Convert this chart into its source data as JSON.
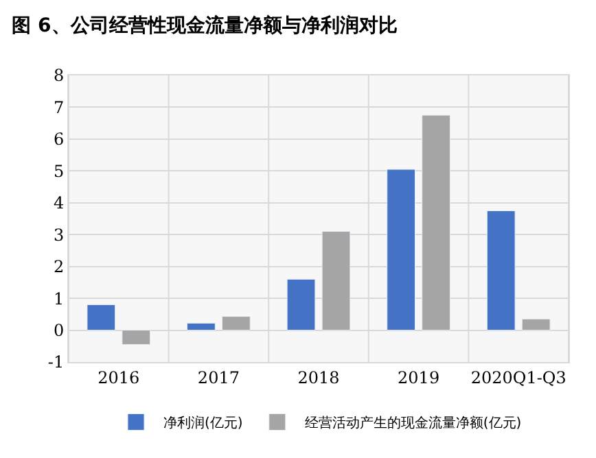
{
  "chart_data": {
    "type": "bar",
    "title": "图 6、公司经营性现金流量净额与净利润对比",
    "categories": [
      "2016",
      "2017",
      "2018",
      "2019",
      "2020Q1-Q3"
    ],
    "series": [
      {
        "name": "净利润(亿元)",
        "color": "#4472c4",
        "values": [
          0.8,
          0.22,
          1.6,
          5.05,
          3.75
        ]
      },
      {
        "name": "经营活动产生的现金流量净额(亿元)",
        "color": "#a5a5a5",
        "values": [
          -0.45,
          0.43,
          3.1,
          6.75,
          0.35
        ]
      }
    ],
    "ylim": [
      -1,
      8
    ],
    "yticks": [
      -1,
      0,
      1,
      2,
      3,
      4,
      5,
      6,
      7,
      8
    ],
    "grid": true,
    "legend": "bottom"
  }
}
